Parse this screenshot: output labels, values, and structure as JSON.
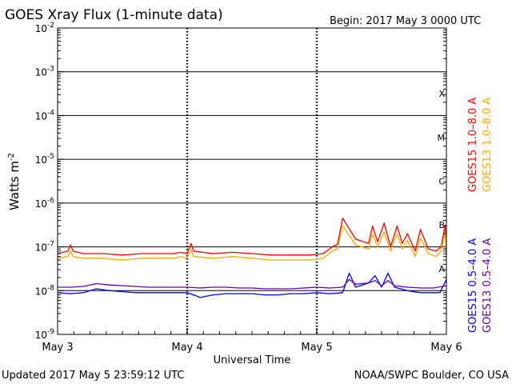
{
  "chart_data": {
    "type": "line",
    "title": "GOES Xray Flux (1-minute data)",
    "begin_label": "Begin:  2017 May 3 0000 UTC",
    "ylabel": "Watts m",
    "ylabel_sup": "-2",
    "xlabel": "Universal Time",
    "y_scale": "log",
    "ylim": [
      1e-09,
      0.01
    ],
    "y_ticks": [
      {
        "base": "10",
        "exp": "-2",
        "value": 0.01
      },
      {
        "base": "10",
        "exp": "-3",
        "value": 0.001
      },
      {
        "base": "10",
        "exp": "-4",
        "value": 0.0001
      },
      {
        "base": "10",
        "exp": "-5",
        "value": 1e-05
      },
      {
        "base": "10",
        "exp": "-6",
        "value": 1e-06
      },
      {
        "base": "10",
        "exp": "-7",
        "value": 1e-07
      },
      {
        "base": "10",
        "exp": "-8",
        "value": 1e-08
      },
      {
        "base": "10",
        "exp": "-9",
        "value": 1e-09
      }
    ],
    "xlim": [
      0,
      3
    ],
    "x_ticks": [
      {
        "label": "May 3",
        "day": 0
      },
      {
        "label": "May 4",
        "day": 1
      },
      {
        "label": "May 5",
        "day": 2
      },
      {
        "label": "May 6",
        "day": 3
      }
    ],
    "flare_classes": [
      {
        "label": "X",
        "value": 0.000316
      },
      {
        "label": "M",
        "value": 3.16e-05
      },
      {
        "label": "C",
        "value": 3.16e-06
      },
      {
        "label": "B",
        "value": 3.16e-07
      },
      {
        "label": "A",
        "value": 3.16e-08
      }
    ],
    "grid": true,
    "legend_placement": "right-vertical",
    "series": [
      {
        "name": "GOES15 1.0–8.0 A",
        "color": "#ff0000",
        "x": [
          0,
          0.08,
          0.1,
          0.12,
          0.2,
          0.35,
          0.5,
          0.65,
          0.8,
          0.9,
          0.95,
          1.0,
          1.03,
          1.05,
          1.2,
          1.35,
          1.5,
          1.65,
          1.8,
          1.95,
          2.05,
          2.12,
          2.16,
          2.2,
          2.3,
          2.4,
          2.43,
          2.47,
          2.52,
          2.57,
          2.62,
          2.66,
          2.7,
          2.76,
          2.8,
          2.86,
          2.92,
          2.96,
          2.99,
          3.0
        ],
        "y": [
          7e-08,
          8e-08,
          1.1e-07,
          8e-08,
          7e-08,
          7e-08,
          6.5e-08,
          7e-08,
          7e-08,
          7e-08,
          7.5e-08,
          7e-08,
          1.2e-07,
          8e-08,
          7e-08,
          7.5e-08,
          7e-08,
          6.5e-08,
          6.5e-08,
          6.5e-08,
          7e-08,
          1e-07,
          1.15e-07,
          4.5e-07,
          1.5e-07,
          1.2e-07,
          3e-07,
          1.3e-07,
          3.5e-07,
          1e-07,
          3e-07,
          1.2e-07,
          2e-07,
          8e-08,
          2.5e-07,
          9e-08,
          8e-08,
          1e-07,
          3.2e-07,
          7e-08
        ]
      },
      {
        "name": "GOES13 1.0–8.0 A",
        "color": "#ffaa00",
        "x": [
          0,
          0.08,
          0.1,
          0.12,
          0.2,
          0.35,
          0.5,
          0.65,
          0.8,
          0.9,
          0.95,
          1.0,
          1.03,
          1.05,
          1.2,
          1.35,
          1.5,
          1.65,
          1.8,
          1.95,
          2.05,
          2.12,
          2.16,
          2.2,
          2.3,
          2.4,
          2.43,
          2.47,
          2.52,
          2.57,
          2.62,
          2.66,
          2.7,
          2.76,
          2.8,
          2.86,
          2.92,
          2.96,
          2.99,
          3.0
        ],
        "y": [
          5.5e-08,
          6e-08,
          8e-08,
          6e-08,
          5.5e-08,
          5.5e-08,
          5e-08,
          5.5e-08,
          5.5e-08,
          5.5e-08,
          6e-08,
          5.5e-08,
          9e-08,
          6e-08,
          5.5e-08,
          6e-08,
          5.5e-08,
          5e-08,
          5e-08,
          5e-08,
          5.5e-08,
          8e-08,
          9e-08,
          3e-07,
          1.1e-07,
          9e-08,
          2e-07,
          1e-07,
          2.2e-07,
          8e-08,
          2e-07,
          9e-08,
          1.4e-07,
          6e-08,
          1.6e-07,
          7e-08,
          6e-08,
          8e-08,
          2.2e-07,
          5.5e-08
        ]
      },
      {
        "name": "GOES15 0.5–4.0 A",
        "color": "#0000ff",
        "x": [
          0,
          0.1,
          0.2,
          0.3,
          0.4,
          0.5,
          0.6,
          0.7,
          0.8,
          0.9,
          1.0,
          1.05,
          1.1,
          1.2,
          1.3,
          1.4,
          1.5,
          1.6,
          1.7,
          1.8,
          1.9,
          2.0,
          2.1,
          2.2,
          2.25,
          2.3,
          2.4,
          2.45,
          2.5,
          2.55,
          2.6,
          2.7,
          2.8,
          2.9,
          2.95,
          3.0
        ],
        "y": [
          9e-09,
          8.5e-09,
          9e-09,
          1.1e-08,
          1e-08,
          9.5e-09,
          9e-09,
          9e-09,
          9e-09,
          9e-09,
          9e-09,
          8e-09,
          7e-09,
          8e-09,
          8.5e-09,
          8.5e-09,
          8.5e-09,
          8e-09,
          8e-09,
          8.5e-09,
          8.5e-09,
          9e-09,
          8.5e-09,
          9e-09,
          2.5e-08,
          1.2e-08,
          1.5e-08,
          2.2e-08,
          1.2e-08,
          2.5e-08,
          1.2e-08,
          1e-08,
          9e-09,
          9e-09,
          9e-09,
          1.8e-08
        ]
      },
      {
        "name": "GOES13 0.5–4.0 A",
        "color": "#6600aa",
        "x": [
          0,
          0.1,
          0.2,
          0.3,
          0.4,
          0.5,
          0.6,
          0.7,
          0.8,
          0.9,
          1.0,
          1.1,
          1.2,
          1.3,
          1.4,
          1.5,
          1.6,
          1.7,
          1.8,
          1.9,
          2.0,
          2.1,
          2.2,
          2.25,
          2.3,
          2.4,
          2.45,
          2.5,
          2.55,
          2.6,
          2.7,
          2.8,
          2.9,
          3.0
        ],
        "y": [
          1.2e-08,
          1.2e-08,
          1.25e-08,
          1.45e-08,
          1.35e-08,
          1.3e-08,
          1.25e-08,
          1.2e-08,
          1.2e-08,
          1.2e-08,
          1.2e-08,
          1.15e-08,
          1.2e-08,
          1.2e-08,
          1.15e-08,
          1.15e-08,
          1.1e-08,
          1.1e-08,
          1.1e-08,
          1.15e-08,
          1.2e-08,
          1.15e-08,
          1.2e-08,
          1.8e-08,
          1.4e-08,
          1.5e-08,
          1.7e-08,
          1.3e-08,
          1.7e-08,
          1.3e-08,
          1.2e-08,
          1.15e-08,
          1.15e-08,
          1.3e-08
        ]
      }
    ]
  },
  "footer": {
    "updated": "Updated 2017 May  5 23:59:12 UTC",
    "credit": "NOAA/SWPC Boulder, CO USA"
  }
}
